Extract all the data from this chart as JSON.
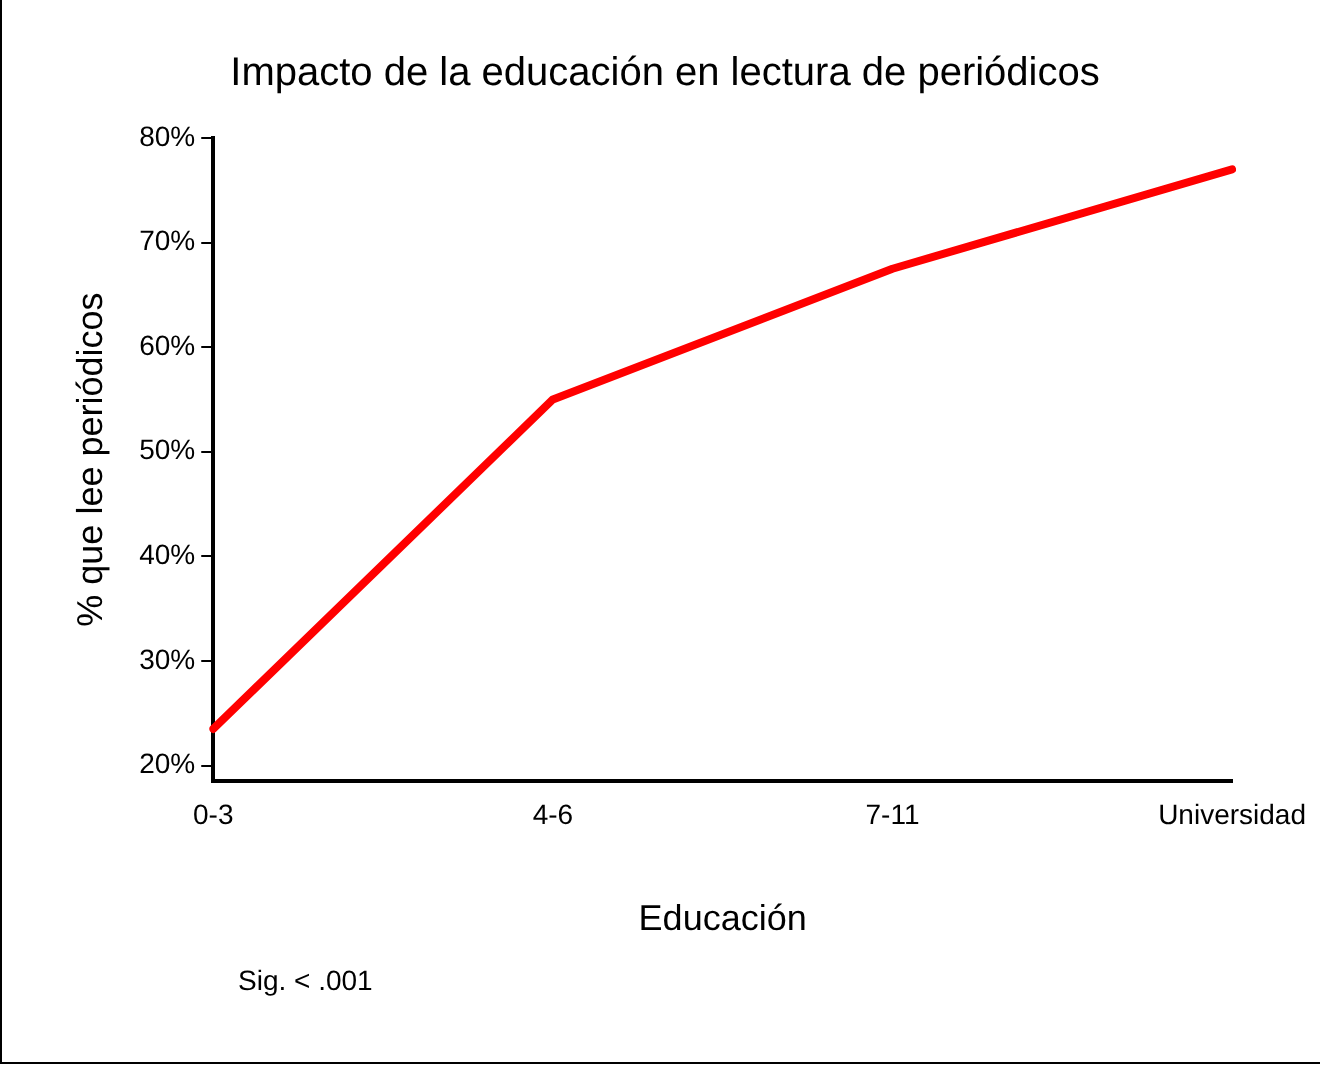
{
  "chart_data": {
    "type": "line",
    "title": "Impacto de la educación en lectura de periódicos",
    "xlabel": "Educación",
    "ylabel": "% que lee periódicos",
    "categories": [
      "0-3",
      "4-6",
      "7-11",
      "Universidad"
    ],
    "series": [
      {
        "color": "#ff0000",
        "values": [
          23.5,
          55,
          67.5,
          77
        ]
      }
    ],
    "ylim": [
      18.5,
      80
    ],
    "yticks": [
      {
        "value": 20,
        "label": "20%"
      },
      {
        "value": 30,
        "label": "30%"
      },
      {
        "value": 40,
        "label": "40%"
      },
      {
        "value": 50,
        "label": "50%"
      },
      {
        "value": 60,
        "label": "60%"
      },
      {
        "value": 70,
        "label": "70%"
      },
      {
        "value": 80,
        "label": "80%"
      }
    ],
    "grid": false,
    "legend": false,
    "marker": "none",
    "line_style": "solid",
    "annotations": [
      "Sig. < .001"
    ]
  }
}
